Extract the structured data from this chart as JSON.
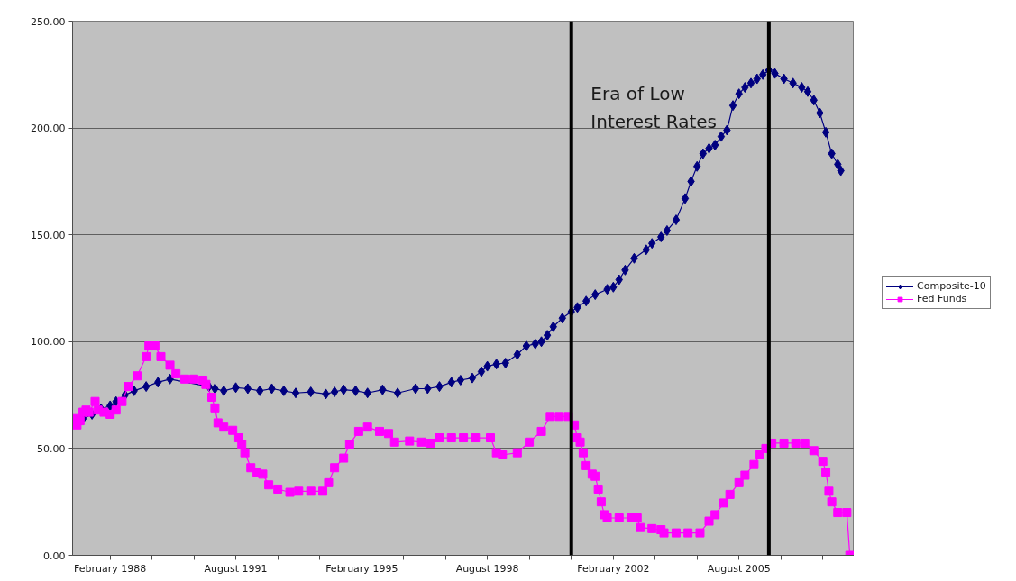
{
  "chart_data": {
    "type": "line",
    "xlim": [
      "1987-01-15",
      "2008-10-15"
    ],
    "xticks": [
      {
        "value": "1988-02",
        "label": "February 1988"
      },
      {
        "value": "1989-04",
        "label": null
      },
      {
        "value": "1990-06",
        "label": null
      },
      {
        "value": "1991-08",
        "label": "August 1991"
      },
      {
        "value": "1992-10",
        "label": null
      },
      {
        "value": "1993-12",
        "label": null
      },
      {
        "value": "1995-02",
        "label": "February 1995"
      },
      {
        "value": "1996-04",
        "label": null
      },
      {
        "value": "1997-06",
        "label": null
      },
      {
        "value": "1998-08",
        "label": "August 1998"
      },
      {
        "value": "1999-10",
        "label": null
      },
      {
        "value": "2000-12",
        "label": null
      },
      {
        "value": "2002-02",
        "label": "February 2002"
      },
      {
        "value": "2003-04",
        "label": null
      },
      {
        "value": "2004-06",
        "label": null
      },
      {
        "value": "2005-08",
        "label": "August 2005"
      },
      {
        "value": "2006-10",
        "label": null
      },
      {
        "value": "2007-12",
        "label": null
      }
    ],
    "ylim": [
      0,
      250
    ],
    "yticks": [
      {
        "value": 0,
        "label": "0.00"
      },
      {
        "value": 50,
        "label": "50.00"
      },
      {
        "value": 100,
        "label": "100.00"
      },
      {
        "value": 150,
        "label": "150.00"
      },
      {
        "value": 200,
        "label": "200.00"
      },
      {
        "value": 250,
        "label": "250.00"
      }
    ],
    "grid": "y",
    "legend": "right",
    "ref_lines": [
      {
        "axis": "x",
        "value": "2000-12",
        "color": "#000000"
      },
      {
        "axis": "x",
        "value": "2006-06",
        "color": "#000000"
      }
    ],
    "annotations": [
      "Era of Low\nInterest Rates"
    ],
    "series": [
      {
        "name": "Composite-10",
        "color": "#000080",
        "marker": "diamond",
        "x": [
          "1987-02",
          "1987-05",
          "1987-08",
          "1987-11",
          "1988-02",
          "1988-04",
          "1988-07",
          "1988-10",
          "1989-02",
          "1989-06",
          "1989-10",
          "1990-11",
          "1991-01",
          "1991-04",
          "1991-08",
          "1991-12",
          "1992-04",
          "1992-08",
          "1992-12",
          "1993-04",
          "1993-09",
          "1994-02",
          "1994-05",
          "1994-08",
          "1994-12",
          "1995-04",
          "1995-09",
          "1996-02",
          "1996-08",
          "1996-12",
          "1997-04",
          "1997-08",
          "1997-11",
          "1998-03",
          "1998-06",
          "1998-08",
          "1998-11",
          "1999-02",
          "1999-06",
          "1999-09",
          "1999-12",
          "2000-02",
          "2000-04",
          "2000-06",
          "2000-09",
          "2000-12",
          "2001-02",
          "2001-05",
          "2001-08",
          "2001-12",
          "2002-02",
          "2002-04",
          "2002-06",
          "2002-09",
          "2003-01",
          "2003-03",
          "2003-06",
          "2003-08",
          "2003-11",
          "2004-02",
          "2004-04",
          "2004-06",
          "2004-08",
          "2004-10",
          "2004-12",
          "2005-02",
          "2005-04",
          "2005-06",
          "2005-08",
          "2005-10",
          "2005-12",
          "2006-02",
          "2006-04",
          "2006-06",
          "2006-08",
          "2006-11",
          "2007-02",
          "2007-05",
          "2007-07",
          "2007-09",
          "2007-11",
          "2008-01",
          "2008-03",
          "2008-05",
          "2008-06"
        ],
        "values": [
          63,
          64,
          66,
          68.5,
          70,
          72,
          75,
          77,
          79,
          81,
          82.5,
          79,
          78,
          77,
          78.5,
          78,
          77,
          78,
          77,
          76,
          76.5,
          75.5,
          76.5,
          77.5,
          77,
          76,
          77.5,
          76,
          78,
          78,
          79,
          81,
          82,
          83,
          86,
          88.5,
          89.5,
          90,
          94,
          98,
          99,
          100,
          103,
          107,
          111,
          114,
          116,
          119,
          122,
          124.5,
          125.5,
          129,
          133.5,
          139,
          143,
          146,
          149,
          152,
          157,
          167,
          175,
          182,
          188,
          190.5,
          192,
          196,
          199,
          210.5,
          216,
          219,
          221,
          223,
          225,
          227,
          225.5,
          223,
          221,
          219,
          217,
          213,
          207,
          198,
          188,
          183,
          180
        ]
      },
      {
        "name": "Fed Funds",
        "color": "#ff00ff",
        "marker": "square",
        "x": [
          "1987-02",
          "1987-03",
          "1987-04",
          "1987-05",
          "1987-06",
          "1987-07",
          "1987-09",
          "1987-10",
          "1987-12",
          "1988-02",
          "1988-04",
          "1988-06",
          "1988-08",
          "1988-11",
          "1989-02",
          "1989-03",
          "1989-05",
          "1989-07",
          "1989-10",
          "1989-12",
          "1990-03",
          "1990-06",
          "1990-09",
          "1990-10",
          "1990-12",
          "1991-01",
          "1991-02",
          "1991-04",
          "1991-07",
          "1991-09",
          "1991-10",
          "1991-11",
          "1992-01",
          "1992-03",
          "1992-05",
          "1992-07",
          "1992-10",
          "1993-02",
          "1993-05",
          "1993-09",
          "1994-01",
          "1994-03",
          "1994-05",
          "1994-08",
          "1994-10",
          "1995-01",
          "1995-04",
          "1995-08",
          "1995-11",
          "1996-01",
          "1996-06",
          "1996-10",
          "1997-01",
          "1997-04",
          "1997-08",
          "1997-12",
          "1998-04",
          "1998-09",
          "1998-11",
          "1999-01",
          "1999-06",
          "1999-10",
          "2000-02",
          "2000-05",
          "2000-08",
          "2000-11",
          "2001-01",
          "2001-02",
          "2001-03",
          "2001-04",
          "2001-05",
          "2001-07",
          "2001-08",
          "2001-09",
          "2001-10",
          "2001-11",
          "2001-12",
          "2002-04",
          "2002-08",
          "2002-10",
          "2002-11",
          "2003-03",
          "2003-06",
          "2003-07",
          "2003-11",
          "2004-03",
          "2004-07",
          "2004-10",
          "2004-12",
          "2005-03",
          "2005-05",
          "2005-08",
          "2005-10",
          "2006-01",
          "2006-03",
          "2006-05",
          "2006-07",
          "2006-11",
          "2007-03",
          "2007-06",
          "2007-09",
          "2007-12",
          "2008-01",
          "2008-02",
          "2008-03",
          "2008-05",
          "2008-08",
          "2008-09"
        ],
        "values": [
          64,
          61,
          63,
          67,
          68,
          67,
          72,
          68,
          67,
          66,
          68,
          72,
          79,
          84,
          93,
          98,
          98,
          93,
          89,
          85,
          82.5,
          82.5,
          82,
          80,
          74,
          69,
          62,
          60,
          58.5,
          55,
          52,
          48,
          41,
          39,
          38,
          33,
          31,
          29.5,
          30,
          30,
          30,
          34,
          41,
          45.5,
          52,
          58,
          60,
          58,
          57,
          53,
          53.5,
          53,
          52.5,
          55,
          55,
          55,
          55,
          55,
          48,
          47,
          48,
          53,
          58,
          65,
          65,
          65,
          61,
          55,
          53,
          48,
          42,
          38,
          37,
          31,
          25,
          19,
          17.5,
          17.5,
          17.5,
          17.5,
          13,
          12.5,
          12,
          10.5,
          10.5,
          10.5,
          10.5,
          16,
          19,
          24.5,
          28.5,
          34,
          37.5,
          42.5,
          47,
          50,
          52.5,
          52.5,
          52.5,
          52.5,
          49,
          44,
          39,
          30,
          25,
          20,
          20,
          0
        ]
      }
    ]
  }
}
